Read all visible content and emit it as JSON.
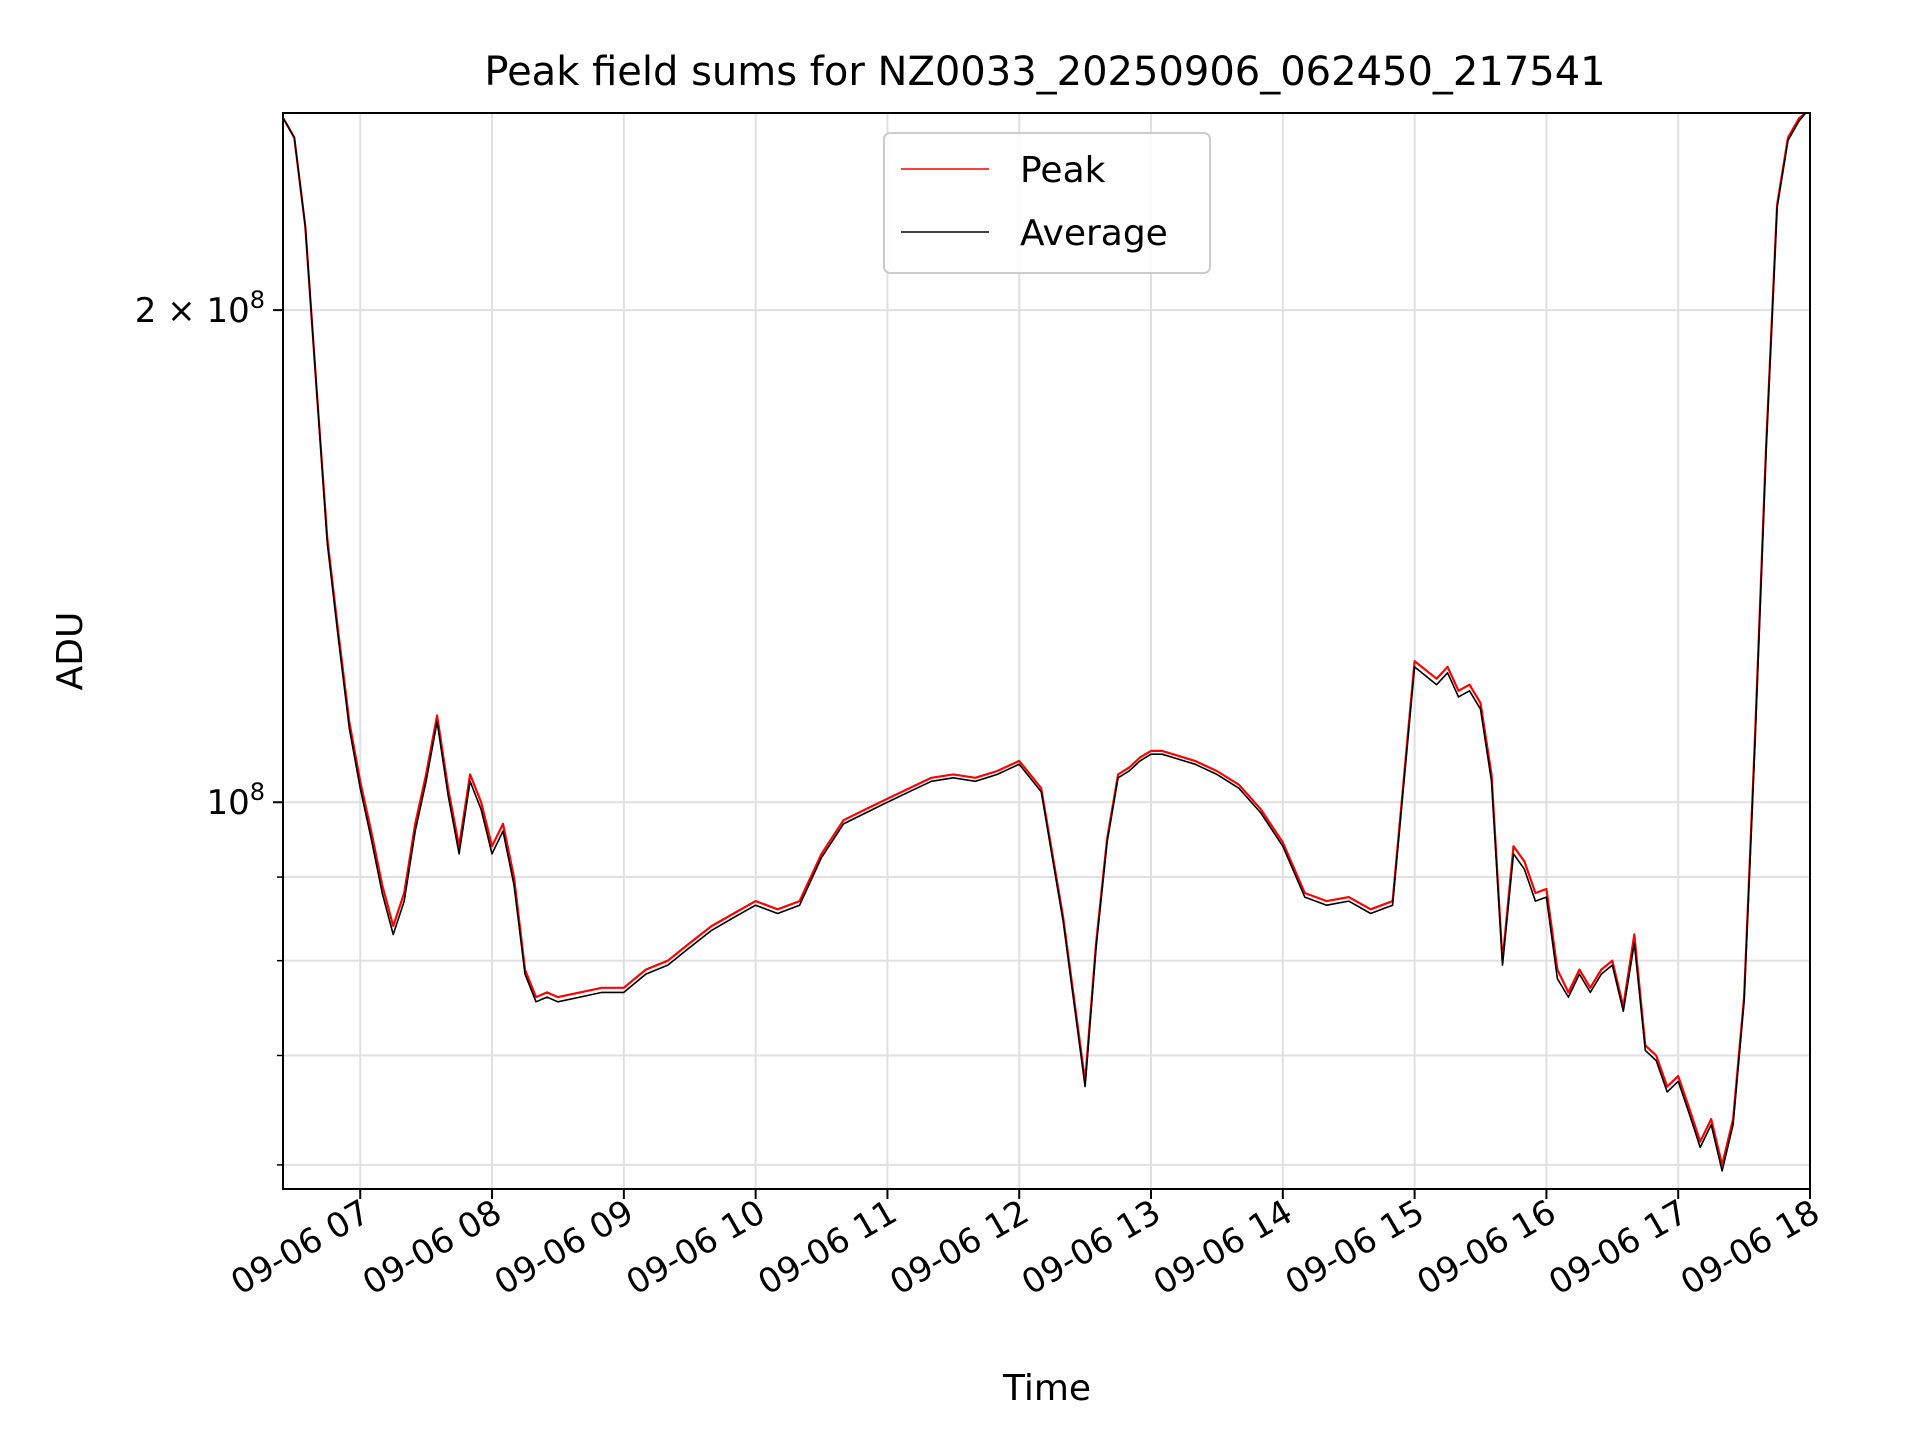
{
  "chart_data": {
    "type": "line",
    "title": "Peak field sums for NZ0033_20250906_062450_217541",
    "xlabel": "Time",
    "ylabel": "ADU",
    "y_scale": "log",
    "grid": true,
    "legend": "upper center",
    "x_ticks": [
      "09-06 07",
      "09-06 08",
      "09-06 09",
      "09-06 10",
      "09-06 11",
      "09-06 12",
      "09-06 13",
      "09-06 14",
      "09-06 15",
      "09-06 16",
      "09-06 17",
      "09-06 18"
    ],
    "y_ticks": [
      {
        "value": 100000000,
        "label": "10^8"
      },
      {
        "value": 200000000,
        "label": "2 × 10^8"
      }
    ],
    "y_tick_labels": {
      "ten_eight_base": "10",
      "ten_eight_exp": "8",
      "two_ten_eight_base": "2 × 10",
      "two_ten_eight_exp": "8"
    },
    "xlim": [
      "2025-09-06 06:24:50",
      "2025-09-06 18:00:00"
    ],
    "ylim": [
      58000000,
      264000000
    ],
    "x": [
      "06:25",
      "06:30",
      "06:35",
      "06:40",
      "06:45",
      "06:50",
      "06:55",
      "07:00",
      "07:05",
      "07:10",
      "07:15",
      "07:20",
      "07:25",
      "07:30",
      "07:35",
      "07:40",
      "07:45",
      "07:50",
      "07:55",
      "08:00",
      "08:05",
      "08:10",
      "08:15",
      "08:20",
      "08:25",
      "08:30",
      "08:40",
      "08:50",
      "09:00",
      "09:10",
      "09:20",
      "09:30",
      "09:40",
      "09:50",
      "10:00",
      "10:10",
      "10:20",
      "10:30",
      "10:40",
      "10:50",
      "11:00",
      "11:10",
      "11:20",
      "11:30",
      "11:40",
      "11:50",
      "12:00",
      "12:10",
      "12:20",
      "12:30",
      "12:35",
      "12:40",
      "12:45",
      "12:50",
      "12:55",
      "13:00",
      "13:05",
      "13:10",
      "13:20",
      "13:30",
      "13:40",
      "13:50",
      "14:00",
      "14:10",
      "14:20",
      "14:30",
      "14:40",
      "14:45",
      "14:50",
      "15:00",
      "15:10",
      "15:15",
      "15:20",
      "15:25",
      "15:30",
      "15:35",
      "15:40",
      "15:45",
      "15:50",
      "15:55",
      "16:00",
      "16:05",
      "16:10",
      "16:15",
      "16:20",
      "16:25",
      "16:30",
      "16:35",
      "16:40",
      "16:45",
      "16:50",
      "16:55",
      "17:00",
      "17:05",
      "17:10",
      "17:15",
      "17:20",
      "17:25",
      "17:30",
      "17:35",
      "17:40",
      "17:45",
      "17:50",
      "17:55",
      "17:58"
    ],
    "series": [
      {
        "name": "Peak",
        "color": "#ff0000",
        "values": [
          262000000,
          255000000,
          225000000,
          180000000,
          145000000,
          127000000,
          112000000,
          103000000,
          96000000,
          89000000,
          84000000,
          88000000,
          97000000,
          104000000,
          113000000,
          102000000,
          94000000,
          104000000,
          100000000,
          94000000,
          97000000,
          90000000,
          79000000,
          76000000,
          76500000,
          76000000,
          76500000,
          77000000,
          77000000,
          79000000,
          80000000,
          82000000,
          84000000,
          85500000,
          87000000,
          86000000,
          87000000,
          93000000,
          97500000,
          99000000,
          100500000,
          102000000,
          103500000,
          104000000,
          103500000,
          104500000,
          106000000,
          102000000,
          85000000,
          67500000,
          82000000,
          95000000,
          104000000,
          105000000,
          106500000,
          107500000,
          107500000,
          107000000,
          106000000,
          104500000,
          102500000,
          99000000,
          94500000,
          88000000,
          87000000,
          87500000,
          86000000,
          86500000,
          87000000,
          122000000,
          119000000,
          121000000,
          117000000,
          118000000,
          115000000,
          104000000,
          80000000,
          94000000,
          92000000,
          88000000,
          88500000,
          79000000,
          76500000,
          79000000,
          77000000,
          79000000,
          80000000,
          75000000,
          83000000,
          71000000,
          70000000,
          67000000,
          68000000,
          65000000,
          62000000,
          64000000,
          60000000,
          64000000,
          76000000,
          110000000,
          165000000,
          232000000,
          255000000,
          262000000,
          264000000
        ]
      },
      {
        "name": "Average",
        "color": "#000000",
        "values": [
          262000000,
          255000000,
          225000000,
          180000000,
          144000000,
          126000000,
          111000000,
          102000000,
          95000000,
          88000000,
          83000000,
          87000000,
          96000000,
          103000000,
          112000000,
          101000000,
          93000000,
          103000000,
          99000000,
          93000000,
          96000000,
          89000000,
          78500000,
          75500000,
          76000000,
          75500000,
          76000000,
          76500000,
          76500000,
          78500000,
          79500000,
          81500000,
          83500000,
          85000000,
          86500000,
          85500000,
          86500000,
          92500000,
          97000000,
          98500000,
          100000000,
          101500000,
          103000000,
          103500000,
          103000000,
          104000000,
          105500000,
          101500000,
          84500000,
          67000000,
          81500000,
          94500000,
          103500000,
          104500000,
          106000000,
          107000000,
          107000000,
          106500000,
          105500000,
          104000000,
          102000000,
          98500000,
          94000000,
          87500000,
          86500000,
          87000000,
          85500000,
          86000000,
          86500000,
          121000000,
          118000000,
          120000000,
          116000000,
          117000000,
          114000000,
          103000000,
          79500000,
          93000000,
          91000000,
          87000000,
          87500000,
          78000000,
          76000000,
          78500000,
          76500000,
          78500000,
          79500000,
          74500000,
          82000000,
          70500000,
          69500000,
          66500000,
          67500000,
          64500000,
          61500000,
          63500000,
          59500000,
          63500000,
          75500000,
          109000000,
          164000000,
          231000000,
          254000000,
          261000000,
          264000000
        ]
      }
    ]
  }
}
